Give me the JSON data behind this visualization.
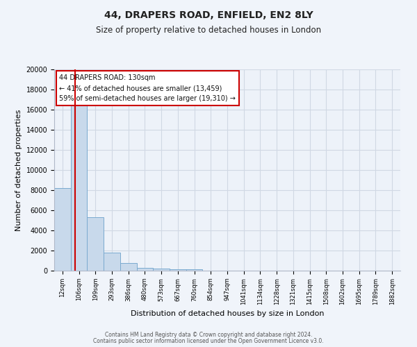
{
  "title": "44, DRAPERS ROAD, ENFIELD, EN2 8LY",
  "subtitle": "Size of property relative to detached houses in London",
  "xlabel": "Distribution of detached houses by size in London",
  "ylabel": "Number of detached properties",
  "bar_labels": [
    "12sqm",
    "106sqm",
    "199sqm",
    "293sqm",
    "386sqm",
    "480sqm",
    "573sqm",
    "667sqm",
    "760sqm",
    "854sqm",
    "947sqm",
    "1041sqm",
    "1134sqm",
    "1228sqm",
    "1321sqm",
    "1415sqm",
    "1508sqm",
    "1602sqm",
    "1695sqm",
    "1789sqm",
    "1882sqm"
  ],
  "bar_values": [
    8200,
    16600,
    5300,
    1800,
    750,
    280,
    200,
    150,
    130,
    0,
    0,
    0,
    0,
    0,
    0,
    0,
    0,
    0,
    0,
    0,
    0
  ],
  "bar_color": "#c8d9eb",
  "bar_edge_color": "#7aaacf",
  "vline_color": "#cc0000",
  "vline_x_offset": 0.25,
  "annotation_line1": "44 DRAPERS ROAD: 130sqm",
  "annotation_line2": "← 41% of detached houses are smaller (13,459)",
  "annotation_line3": "59% of semi-detached houses are larger (19,310) →",
  "ylim": [
    0,
    20000
  ],
  "yticks": [
    0,
    2000,
    4000,
    6000,
    8000,
    10000,
    12000,
    14000,
    16000,
    18000,
    20000
  ],
  "bg_color": "#f0f4fa",
  "plot_bg_color": "#edf2f9",
  "grid_color": "#d0d8e4",
  "footer_line1": "Contains HM Land Registry data © Crown copyright and database right 2024.",
  "footer_line2": "Contains public sector information licensed under the Open Government Licence v3.0."
}
